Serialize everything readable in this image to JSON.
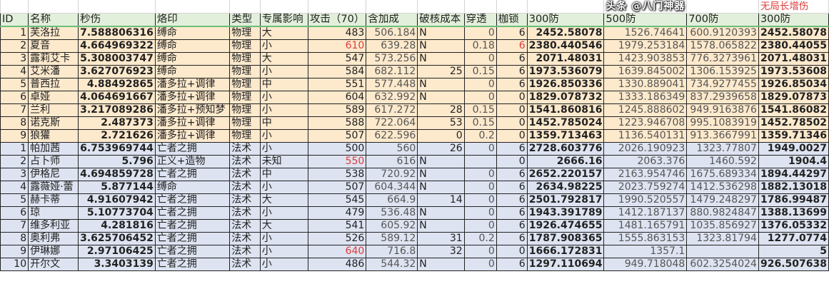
{
  "note": "无局长增伤",
  "columns": [
    "ID",
    "名称",
    "秒伤",
    "烙印",
    "类型",
    "专属影响",
    "攻击（70）",
    "含加成",
    "破核成本",
    "穿透",
    "枷锁",
    "300防",
    "500防",
    "700防",
    "300防"
  ],
  "colors": {
    "header": "#e2efda",
    "physical_rows": "#fde9cc",
    "magic_rows": "#dde3f1",
    "highlight_text": "#e03c3c"
  },
  "rows": [
    {
      "group": "phys",
      "cells": [
        "1",
        "芙洛拉",
        "7.588806316",
        "缚命",
        "物理",
        "大",
        "483",
        "506.184",
        "N",
        "0",
        "6",
        "2452.58078",
        "1526.74641",
        "600.9120393",
        "2452.58078"
      ]
    },
    {
      "group": "phys",
      "red": [
        6,
        10
      ],
      "cells": [
        "2",
        "夏音",
        "4.664969322",
        "缚命",
        "物理",
        "小",
        "610",
        "639.28",
        "N",
        "0.18",
        "6",
        "2380.440546",
        "1979.253184",
        "1578.065822",
        "2380.44055"
      ]
    },
    {
      "group": "phys",
      "cells": [
        "3",
        "露莉艾卡",
        "5.308003747",
        "缚命",
        "物理",
        "大",
        "547",
        "573.256",
        "N",
        "0",
        "6",
        "2071.48031",
        "1423.903853",
        "776.3273961",
        "2071.48031"
      ]
    },
    {
      "group": "phys",
      "cells": [
        "4",
        "艾米潘",
        "3.627076923",
        "缚命",
        "物理",
        "小",
        "584",
        "682.112",
        "25",
        "0.15",
        "6",
        "1973.536079",
        "1639.845002",
        "1306.153925",
        "1973.53608"
      ]
    },
    {
      "group": "phys",
      "cells": [
        "5",
        "普西拉",
        "4.88492865",
        "潘多拉+调律",
        "物理",
        "中",
        "551",
        "577.448",
        "N",
        "0",
        "6",
        "1926.850336",
        "1330.889041",
        "734.9277455",
        "1926.85034"
      ]
    },
    {
      "group": "phys",
      "cells": [
        "6",
        "卓娅",
        "4.064691667",
        "潘多拉+调律",
        "物理",
        "小",
        "604",
        "632.992",
        "N",
        "0",
        "0",
        "1829.078732",
        "1333.186349",
        "837.2939658",
        "1829.07873"
      ]
    },
    {
      "group": "phys",
      "cells": [
        "7",
        "兰利",
        "3.217089286",
        "潘多拉+预知梦",
        "物理",
        "小",
        "589",
        "617.272",
        "28",
        "0.15",
        "0",
        "1541.860816",
        "1245.888602",
        "949.9163876",
        "1541.86082"
      ]
    },
    {
      "group": "phys",
      "cells": [
        "8",
        "诺克斯",
        "2.487373",
        "潘多拉+调律",
        "物理",
        "中",
        "588",
        "722.064",
        "53",
        "0.15",
        "0",
        "1452.785024",
        "1223.946708",
        "995.1083919",
        "1452.78502"
      ]
    },
    {
      "group": "phys",
      "cells": [
        "9",
        "狼獾",
        "2.721626",
        "潘多拉+调律",
        "物理",
        "小",
        "507",
        "622.596",
        "0",
        "0.2",
        "0",
        "1359.713463",
        "1136.540131",
        "913.3667991",
        "1359.71346"
      ]
    },
    {
      "group": "mag",
      "cells": [
        "1",
        "帕加茜",
        "6.753969744",
        "亡者之拥",
        "法术",
        "小",
        "500",
        "560",
        "26",
        "0",
        "6",
        "2728.603776",
        "2026.190923",
        "1323.77807",
        "1949.0027"
      ]
    },
    {
      "group": "mag",
      "red": [
        6
      ],
      "cells": [
        "2",
        "占卜师",
        "5.796",
        "正义+造物",
        "法术",
        "未知",
        "550",
        "616",
        "N",
        "",
        "0",
        "2666.16",
        "2063.376",
        "1460.592",
        "1904.4"
      ]
    },
    {
      "group": "mag",
      "cells": [
        "3",
        "伊格尼",
        "4.694859728",
        "亡者之拥",
        "法术",
        "中",
        "538",
        "720.92",
        "N",
        "0",
        "6",
        "2652.220157",
        "2163.954746",
        "1675.689334",
        "1894.44297"
      ]
    },
    {
      "group": "mag",
      "cells": [
        "4",
        "露薇娅·蕾",
        "5.877144",
        "缚命",
        "法术",
        "小",
        "507",
        "604.344",
        "N",
        "0",
        "6",
        "2634.98225",
        "2023.759274",
        "1412.536298",
        "1882.13018"
      ]
    },
    {
      "group": "mag",
      "cells": [
        "5",
        "赫卡蒂",
        "4.91607942",
        "亡者之拥",
        "法术",
        "大",
        "545",
        "664.9",
        "14",
        "0",
        "6",
        "2501.792817",
        "1990.520557",
        "1479.248297",
        "1786.99487"
      ]
    },
    {
      "group": "mag",
      "cells": [
        "6",
        "琼",
        "5.10773704",
        "亡者之拥",
        "法术",
        "小",
        "479",
        "536.48",
        "N",
        "0",
        "6",
        "1943.391789",
        "1412.187137",
        "880.9824847",
        "1388.13699"
      ]
    },
    {
      "group": "mag",
      "cells": [
        "7",
        "维多利亚",
        "4.281816",
        "亡者之拥",
        "法术",
        "大",
        "541",
        "605.92",
        "N",
        "0",
        "6",
        "1926.474655",
        "1481.165791",
        "1035.856927",
        "1376.05332"
      ]
    },
    {
      "group": "mag",
      "cells": [
        "8",
        "奥利弗",
        "3.625706452",
        "亡者之拥",
        "法术",
        "小",
        "526",
        "589.12",
        "31",
        "0.2",
        "6",
        "1787.908365",
        "1555.863153",
        "1323.81794",
        "1277.0774"
      ]
    },
    {
      "group": "mag",
      "red": [
        6
      ],
      "cells": [
        "9",
        "伊琳娜",
        "2.97106425",
        "亡者之拥",
        "法术",
        "小",
        "640",
        "716.8",
        "32",
        "0",
        "0",
        "1666.172831",
        "1357.1",
        "",
        "5"
      ]
    },
    {
      "group": "mag",
      "cells": [
        "10",
        "开尔文",
        "3.3403139",
        "亡者之拥",
        "法术",
        "小",
        "486",
        "544.32",
        "N",
        "0",
        "6",
        "1297.110694",
        "949.718048",
        "602.3254024",
        "926.507638"
      ]
    }
  ],
  "watermark": "头条 @八门神器"
}
